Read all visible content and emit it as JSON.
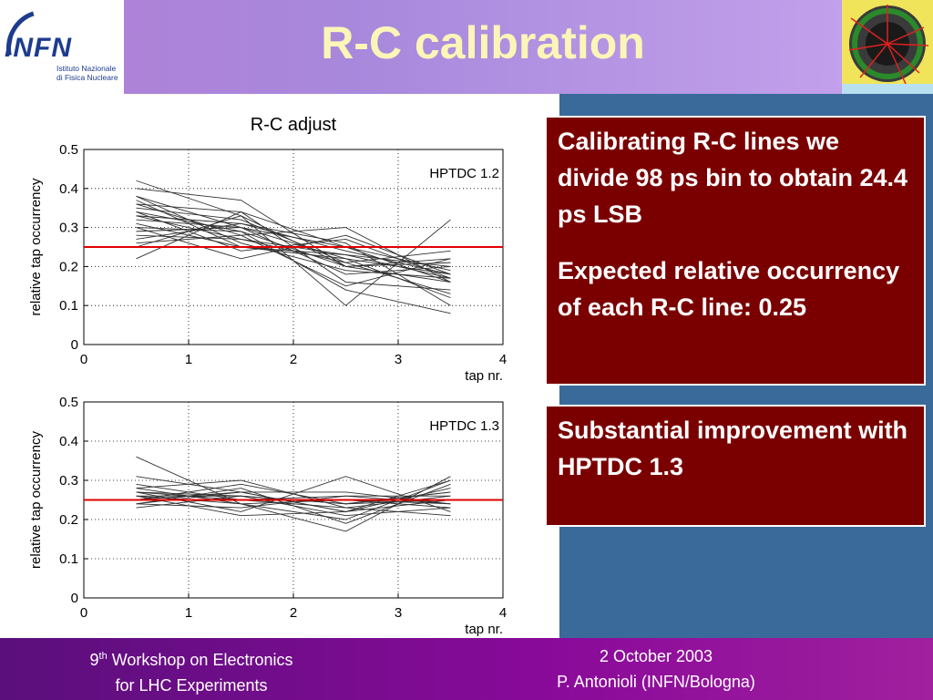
{
  "header": {
    "title": "R-C calibration",
    "logo_text": "INFN",
    "logo_subtitle": "Istituto Nazionale di Fisica Nucleare"
  },
  "boxes": {
    "box1_para1": "Calibrating R-C lines we divide 98 ps bin to obtain 24.4 ps LSB",
    "box1_para2": "Expected relative occurrency of each R-C line: 0.25",
    "box2": "Substantial improvement with HPTDC 1.3"
  },
  "footer": {
    "left_sup": "th",
    "left_pre": "9",
    "left_line1": " Workshop on Electronics",
    "left_line2": "for LHC Experiments",
    "right_line1": "2 October 2003",
    "right_line2": "P. Antonioli (INFN/Bologna)"
  },
  "colors": {
    "reference_line": "#e00000",
    "series_line": "#303030",
    "box_background": "#7a0000"
  },
  "chart_data": [
    {
      "type": "line",
      "title": "R-C adjust",
      "label": "HPTDC 1.2",
      "xlabel": "tap nr.",
      "ylabel": "relative tap occurrency",
      "xlim": [
        0,
        4
      ],
      "ylim": [
        0,
        0.5
      ],
      "xticks": [
        "0",
        "1",
        "2",
        "3",
        "4"
      ],
      "yticks": [
        "0",
        "0.1",
        "0.2",
        "0.3",
        "0.4",
        "0.5"
      ],
      "grid": true,
      "reference_value": 0.25,
      "x": [
        0.5,
        1.5,
        2.5,
        3.5
      ],
      "series": [
        {
          "values": [
            0.42,
            0.33,
            0.1,
            0.32
          ]
        },
        {
          "values": [
            0.4,
            0.37,
            0.2,
            0.16
          ]
        },
        {
          "values": [
            0.38,
            0.3,
            0.22,
            0.12
          ]
        },
        {
          "values": [
            0.36,
            0.28,
            0.15,
            0.22
          ]
        },
        {
          "values": [
            0.35,
            0.32,
            0.21,
            0.13
          ]
        },
        {
          "values": [
            0.34,
            0.24,
            0.27,
            0.17
          ]
        },
        {
          "values": [
            0.33,
            0.27,
            0.23,
            0.17
          ]
        },
        {
          "values": [
            0.33,
            0.31,
            0.26,
            0.1
          ]
        },
        {
          "values": [
            0.32,
            0.3,
            0.18,
            0.2
          ]
        },
        {
          "values": [
            0.31,
            0.25,
            0.23,
            0.2
          ]
        },
        {
          "values": [
            0.3,
            0.29,
            0.2,
            0.21
          ]
        },
        {
          "values": [
            0.3,
            0.22,
            0.28,
            0.18
          ]
        },
        {
          "values": [
            0.29,
            0.3,
            0.25,
            0.16
          ]
        },
        {
          "values": [
            0.28,
            0.27,
            0.21,
            0.24
          ]
        },
        {
          "values": [
            0.27,
            0.31,
            0.24,
            0.18
          ]
        },
        {
          "values": [
            0.26,
            0.28,
            0.3,
            0.16
          ]
        },
        {
          "values": [
            0.36,
            0.34,
            0.16,
            0.14
          ]
        },
        {
          "values": [
            0.38,
            0.26,
            0.19,
            0.17
          ]
        },
        {
          "values": [
            0.22,
            0.34,
            0.25,
            0.19
          ]
        },
        {
          "values": [
            0.25,
            0.33,
            0.2,
            0.22
          ]
        },
        {
          "values": [
            0.34,
            0.29,
            0.14,
            0.08
          ]
        },
        {
          "values": [
            0.37,
            0.25,
            0.22,
            0.18
          ]
        }
      ]
    },
    {
      "type": "line",
      "title": "",
      "label": "HPTDC 1.3",
      "xlabel": "tap nr.",
      "ylabel": "relative tap occurrency",
      "xlim": [
        0,
        4
      ],
      "ylim": [
        0,
        0.5
      ],
      "xticks": [
        "0",
        "1",
        "2",
        "3",
        "4"
      ],
      "yticks": [
        "0",
        "0.1",
        "0.2",
        "0.3",
        "0.4",
        "0.5"
      ],
      "grid": true,
      "reference_value": 0.25,
      "x": [
        0.5,
        1.5,
        2.5,
        3.5
      ],
      "series": [
        {
          "values": [
            0.36,
            0.24,
            0.17,
            0.31
          ]
        },
        {
          "values": [
            0.31,
            0.27,
            0.22,
            0.25
          ]
        },
        {
          "values": [
            0.28,
            0.3,
            0.23,
            0.21
          ]
        },
        {
          "values": [
            0.27,
            0.25,
            0.26,
            0.24
          ]
        },
        {
          "values": [
            0.27,
            0.22,
            0.31,
            0.22
          ]
        },
        {
          "values": [
            0.26,
            0.26,
            0.24,
            0.27
          ]
        },
        {
          "values": [
            0.26,
            0.24,
            0.2,
            0.3
          ]
        },
        {
          "values": [
            0.25,
            0.27,
            0.22,
            0.28
          ]
        },
        {
          "values": [
            0.25,
            0.25,
            0.25,
            0.23
          ]
        },
        {
          "values": [
            0.24,
            0.28,
            0.19,
            0.29
          ]
        },
        {
          "values": [
            0.24,
            0.23,
            0.26,
            0.26
          ]
        },
        {
          "values": [
            0.23,
            0.26,
            0.24,
            0.27
          ]
        },
        {
          "values": [
            0.26,
            0.21,
            0.22,
            0.3
          ]
        },
        {
          "values": [
            0.28,
            0.24,
            0.25,
            0.24
          ]
        },
        {
          "values": [
            0.27,
            0.26,
            0.21,
            0.23
          ]
        },
        {
          "values": [
            0.25,
            0.29,
            0.24,
            0.25
          ]
        },
        {
          "values": [
            0.29,
            0.25,
            0.23,
            0.26
          ]
        },
        {
          "values": [
            0.24,
            0.27,
            0.27,
            0.24
          ]
        }
      ]
    }
  ]
}
